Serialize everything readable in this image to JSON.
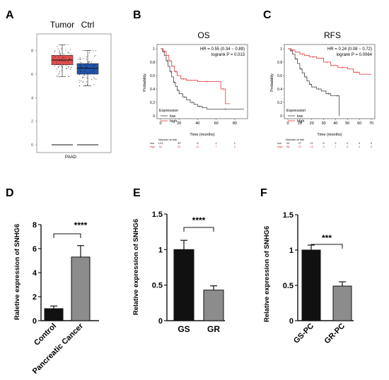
{
  "panels": {
    "A": {
      "letter": "A",
      "col_labels": [
        "Tumor",
        "Ctrl"
      ],
      "x_label": "PAAD",
      "y_ticks": [
        0,
        2,
        4,
        6,
        8
      ],
      "colors": {
        "tumor": "#e05050",
        "ctrl": "#2255aa"
      }
    },
    "B": {
      "letter": "B",
      "title": "OS",
      "hr_text": "HR = 0.55 (0.34 − 0.89)",
      "p_text": "logrank P = 0.013",
      "ylabel": "Probability",
      "xlabel": "Time (months)",
      "x_ticks": [
        0,
        20,
        40,
        60,
        80
      ],
      "y_ticks": [
        0,
        0.2,
        0.4,
        0.6,
        0.8,
        1
      ],
      "legend_title": "Expression",
      "legend_items": [
        "low",
        "high"
      ],
      "risk_title": "Number at risk",
      "risk_rows": [
        {
          "label": "low",
          "values": [
            "123",
            "30",
            "6",
            "1",
            "1"
          ]
        },
        {
          "label": "high",
          "values": [
            "54",
            "22",
            "11",
            "7",
            "0"
          ]
        }
      ]
    },
    "C": {
      "letter": "C",
      "title": "RFS",
      "hr_text": "HR = 0.24 (0.08 − 0.72)",
      "p_text": "logrank P = 0.0064",
      "ylabel": "Probability",
      "xlabel": "Time (months)",
      "x_ticks": [
        0,
        10,
        20,
        30,
        40,
        50,
        60,
        70
      ],
      "y_ticks": [
        0,
        0.2,
        0.4,
        0.6,
        0.8,
        1
      ],
      "legend_title": "Expression",
      "legend_items": [
        "low",
        "high"
      ],
      "risk_title": "Number at risk",
      "risk_rows": [
        {
          "label": "low",
          "values": [
            "43",
            "27",
            "11",
            "6",
            "2",
            "0",
            "0",
            "0"
          ]
        },
        {
          "label": "high",
          "values": [
            "56",
            "21",
            "12",
            "9",
            "7",
            "6",
            "3",
            "0"
          ]
        }
      ]
    },
    "D": {
      "letter": "D",
      "significance": "****"
    },
    "E": {
      "letter": "E",
      "significance": "****"
    },
    "F": {
      "letter": "F",
      "significance": "***"
    }
  },
  "chart_data": [
    {
      "type": "box",
      "panel": "A",
      "categories": [
        "Tumor",
        "Ctrl"
      ],
      "series": [
        {
          "name": "Tumor",
          "q1": 6.8,
          "median": 7.2,
          "q3": 7.6,
          "whisker_low": 5.8,
          "whisker_high": 8.5
        },
        {
          "name": "Ctrl",
          "q1": 6.0,
          "median": 6.5,
          "q3": 6.9,
          "whisker_low": 5.0,
          "whisker_high": 8.0
        }
      ],
      "xlabel": "PAAD",
      "ylim": [
        0,
        9
      ],
      "y_ticks": [
        0,
        2,
        4,
        6,
        8
      ]
    },
    {
      "type": "line",
      "panel": "B",
      "title": "OS",
      "xlabel": "Time (months)",
      "ylabel": "Probability",
      "xlim": [
        0,
        90
      ],
      "ylim": [
        0,
        1
      ],
      "series": [
        {
          "name": "low",
          "color": "#444444",
          "x": [
            0,
            2,
            4,
            6,
            8,
            10,
            12,
            14,
            16,
            18,
            20,
            24,
            28,
            32,
            36,
            40,
            45,
            50,
            90
          ],
          "y": [
            1,
            0.96,
            0.9,
            0.82,
            0.74,
            0.66,
            0.58,
            0.5,
            0.44,
            0.38,
            0.33,
            0.28,
            0.24,
            0.2,
            0.17,
            0.14,
            0.12,
            0.1,
            0.1
          ]
        },
        {
          "name": "high",
          "color": "#e03030",
          "x": [
            0,
            3,
            6,
            9,
            12,
            15,
            18,
            22,
            28,
            40,
            60,
            65,
            70,
            75
          ],
          "y": [
            1,
            0.96,
            0.9,
            0.82,
            0.74,
            0.66,
            0.6,
            0.55,
            0.53,
            0.51,
            0.51,
            0.4,
            0.18,
            0.18
          ]
        }
      ]
    },
    {
      "type": "line",
      "panel": "C",
      "title": "RFS",
      "xlabel": "Time (months)",
      "ylabel": "Probability",
      "xlim": [
        0,
        70
      ],
      "ylim": [
        0,
        1
      ],
      "series": [
        {
          "name": "low",
          "color": "#444444",
          "x": [
            0,
            2,
            4,
            6,
            8,
            10,
            12,
            14,
            16,
            18,
            20,
            24,
            28,
            32,
            36,
            40,
            43,
            43
          ],
          "y": [
            1,
            0.97,
            0.92,
            0.85,
            0.78,
            0.7,
            0.64,
            0.58,
            0.52,
            0.47,
            0.43,
            0.4,
            0.37,
            0.33,
            0.3,
            0.3,
            0.3,
            0
          ]
        },
        {
          "name": "high",
          "color": "#e03030",
          "x": [
            0,
            3,
            6,
            10,
            14,
            18,
            24,
            30,
            36,
            42,
            50,
            55,
            60,
            70
          ],
          "y": [
            1,
            0.98,
            0.95,
            0.92,
            0.9,
            0.88,
            0.86,
            0.8,
            0.75,
            0.72,
            0.7,
            0.65,
            0.62,
            0.62
          ]
        }
      ]
    },
    {
      "type": "bar",
      "panel": "D",
      "categories": [
        "Control",
        "Pancreatic Cancer"
      ],
      "values": [
        1.0,
        5.3
      ],
      "errors": [
        0.22,
        0.95
      ],
      "colors": [
        "#111111",
        "#8c8c8c"
      ],
      "ylabel": "Raletive expression of SNHG6",
      "ylim": [
        0,
        8
      ],
      "y_ticks": [
        0,
        2,
        4,
        6,
        8
      ]
    },
    {
      "type": "bar",
      "panel": "E",
      "categories": [
        "GS",
        "GR"
      ],
      "values": [
        1.0,
        0.43
      ],
      "errors": [
        0.13,
        0.06
      ],
      "colors": [
        "#111111",
        "#8c8c8c"
      ],
      "ylabel": "Relative expression of SNHG6",
      "ylim": [
        0,
        1.5
      ],
      "y_ticks": [
        0.0,
        0.5,
        1.0,
        1.5
      ]
    },
    {
      "type": "bar",
      "panel": "F",
      "categories": [
        "GS-PC",
        "GR-PC"
      ],
      "values": [
        1.0,
        0.49
      ],
      "errors": [
        0.07,
        0.06
      ],
      "colors": [
        "#111111",
        "#8c8c8c"
      ],
      "ylabel": "Relative expression of SNHG6",
      "ylim": [
        0,
        1.5
      ],
      "y_ticks": [
        0.0,
        0.5,
        1.0,
        1.5
      ]
    }
  ]
}
